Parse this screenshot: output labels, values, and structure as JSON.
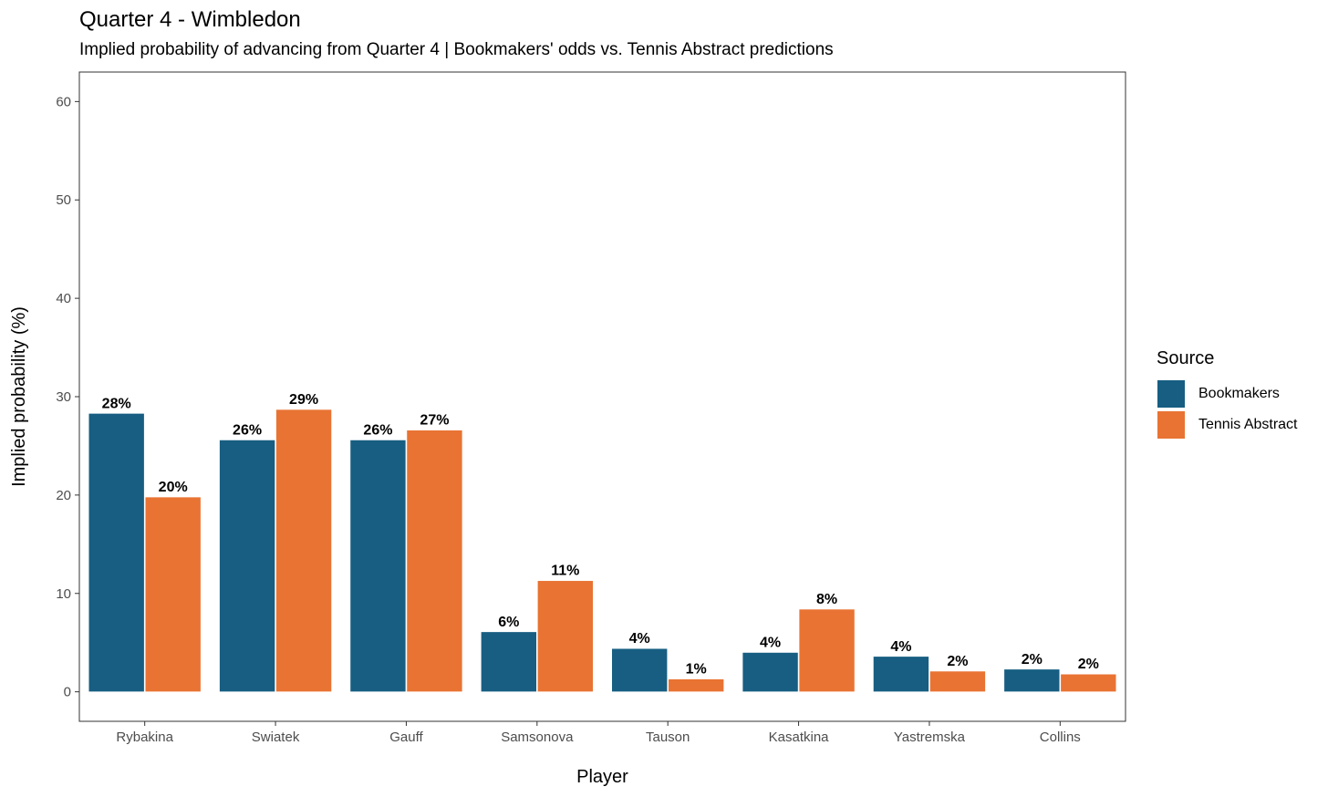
{
  "title": "Quarter 4 - Wimbledon",
  "subtitle": "Implied probability of advancing from Quarter 4 | Bookmakers' odds vs. Tennis Abstract predictions",
  "chart_data": {
    "type": "bar",
    "categories": [
      "Rybakina",
      "Swiatek",
      "Gauff",
      "Samsonova",
      "Tauson",
      "Kasatkina",
      "Yastremska",
      "Collins"
    ],
    "series": [
      {
        "name": "Bookmakers",
        "color": "#175e82",
        "values": [
          28.3,
          25.6,
          25.6,
          6.1,
          4.4,
          4.0,
          3.6,
          2.3
        ],
        "labels": [
          "28%",
          "26%",
          "26%",
          "6%",
          "4%",
          "4%",
          "4%",
          "2%"
        ]
      },
      {
        "name": "Tennis Abstract",
        "color": "#e97333",
        "values": [
          19.8,
          28.7,
          26.6,
          11.3,
          1.3,
          8.4,
          2.1,
          1.8
        ],
        "labels": [
          "20%",
          "29%",
          "27%",
          "11%",
          "1%",
          "8%",
          "2%",
          "2%"
        ]
      }
    ],
    "xlabel": "Player",
    "ylabel": "Implied probability (%)",
    "ylim": [
      -3,
      63
    ],
    "yticks": [
      0,
      10,
      20,
      30,
      40,
      50,
      60
    ],
    "grid": false,
    "legend": {
      "title": "Source",
      "placement": "right"
    }
  }
}
